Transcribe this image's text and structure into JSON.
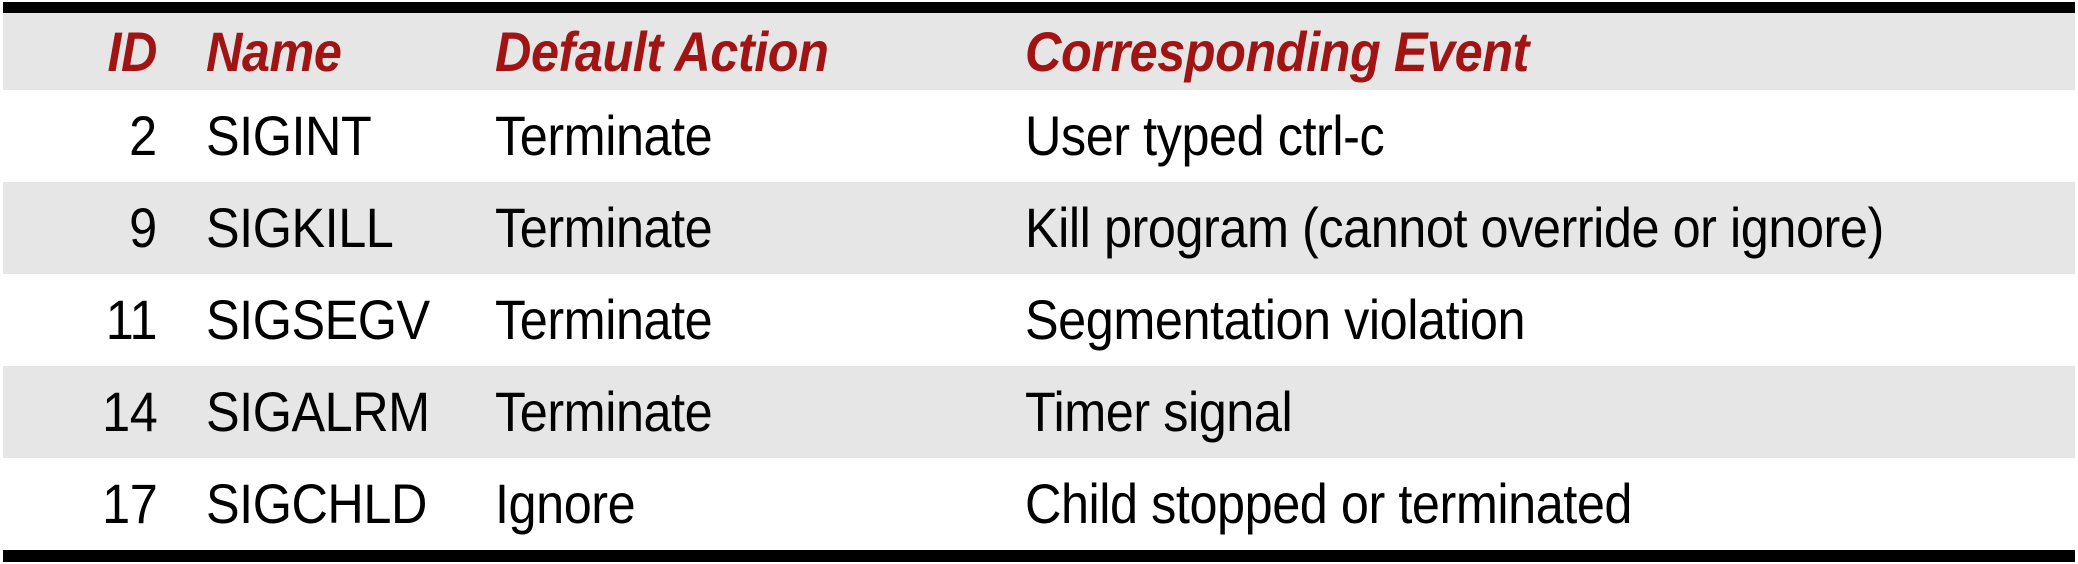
{
  "table": {
    "headers": [
      "ID",
      "Name",
      "Default Action",
      "Corresponding Event"
    ],
    "rows": [
      {
        "id": "2",
        "name": "SIGINT",
        "action": "Terminate",
        "event": "User typed ctrl-c"
      },
      {
        "id": "9",
        "name": "SIGKILL",
        "action": "Terminate",
        "event": "Kill program (cannot override or ignore)"
      },
      {
        "id": "11",
        "name": "SIGSEGV",
        "action": "Terminate",
        "event": "Segmentation violation"
      },
      {
        "id": "14",
        "name": "SIGALRM",
        "action": "Terminate",
        "event": "Timer signal"
      },
      {
        "id": "17",
        "name": "SIGCHLD",
        "action": "Ignore",
        "event": "Child stopped or terminated"
      }
    ],
    "colors": {
      "header_text": "#A01414",
      "body_text": "#000000",
      "alt_row_bg": "#E7E6E6",
      "row_bg": "#FFFFFF",
      "border": "#000000"
    }
  }
}
